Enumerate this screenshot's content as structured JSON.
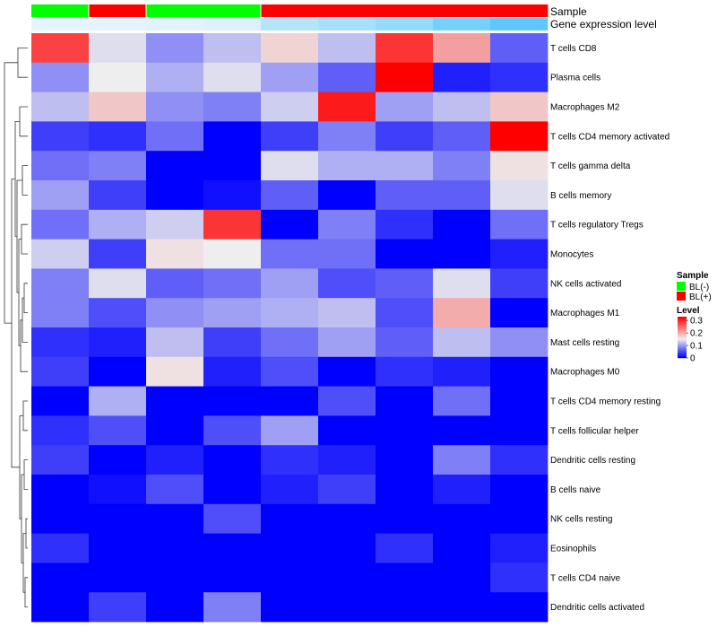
{
  "chart_data": {
    "type": "heatmap",
    "title": "",
    "annotation_rows": [
      {
        "name": "Sample",
        "values": [
          "BL(-)",
          "BL(+)",
          "BL(-)",
          "BL(-)",
          "BL(+)",
          "BL(+)",
          "BL(+)",
          "BL(+)",
          "BL(+)"
        ]
      },
      {
        "name": "Gene expression level",
        "values": [
          0.05,
          0.06,
          0.08,
          0.12,
          0.35,
          0.45,
          0.55,
          0.75,
          0.9
        ]
      }
    ],
    "rows": [
      "T cells CD8",
      "Plasma cells",
      "Macrophages M2",
      "T cells CD4 memory activated",
      "T cells gamma delta",
      "B cells memory",
      "T cells regulatory  Tregs",
      "Monocytes",
      "NK cells activated",
      "Macrophages M1",
      "Mast cells resting",
      "Macrophages M0",
      "T cells CD4 memory resting",
      "T cells follicular helper",
      "Dendritic cells resting",
      "B cells naive",
      "NK cells resting",
      "Eosinophils",
      "T cells CD4 naive",
      "Dendritic cells activated"
    ],
    "columns": 9,
    "values": [
      [
        0.28,
        0.14,
        0.09,
        0.12,
        0.17,
        0.12,
        0.29,
        0.21,
        0.06
      ],
      [
        0.09,
        0.15,
        0.11,
        0.14,
        0.1,
        0.06,
        0.33,
        0.02,
        0.03
      ],
      [
        0.12,
        0.18,
        0.09,
        0.08,
        0.13,
        0.31,
        0.1,
        0.12,
        0.18
      ],
      [
        0.04,
        0.03,
        0.07,
        0.0,
        0.04,
        0.08,
        0.04,
        0.06,
        0.33
      ],
      [
        0.07,
        0.08,
        0.0,
        0.0,
        0.14,
        0.11,
        0.11,
        0.08,
        0.16
      ],
      [
        0.1,
        0.04,
        0.0,
        0.01,
        0.06,
        0.0,
        0.06,
        0.06,
        0.14
      ],
      [
        0.07,
        0.11,
        0.13,
        0.29,
        0.0,
        0.08,
        0.03,
        0.0,
        0.07
      ],
      [
        0.13,
        0.04,
        0.16,
        0.15,
        0.07,
        0.07,
        0.0,
        0.0,
        0.02
      ],
      [
        0.08,
        0.14,
        0.06,
        0.07,
        0.1,
        0.05,
        0.06,
        0.14,
        0.04
      ],
      [
        0.08,
        0.05,
        0.09,
        0.1,
        0.11,
        0.12,
        0.05,
        0.2,
        0.0
      ],
      [
        0.03,
        0.02,
        0.12,
        0.04,
        0.07,
        0.1,
        0.06,
        0.12,
        0.09
      ],
      [
        0.04,
        0.0,
        0.16,
        0.02,
        0.05,
        0.0,
        0.03,
        0.02,
        0.0
      ],
      [
        0.0,
        0.11,
        0.0,
        0.0,
        0.0,
        0.05,
        0.0,
        0.07,
        0.0
      ],
      [
        0.03,
        0.05,
        0.0,
        0.05,
        0.1,
        0.0,
        0.0,
        0.0,
        0.0
      ],
      [
        0.04,
        0.0,
        0.02,
        0.0,
        0.03,
        0.02,
        0.0,
        0.08,
        0.03
      ],
      [
        0.0,
        0.01,
        0.05,
        0.0,
        0.02,
        0.04,
        0.0,
        0.02,
        0.0
      ],
      [
        0.0,
        0.0,
        0.0,
        0.05,
        0.0,
        0.0,
        0.0,
        0.0,
        0.0
      ],
      [
        0.03,
        0.0,
        0.0,
        0.0,
        0.0,
        0.0,
        0.03,
        0.0,
        0.02
      ],
      [
        0.0,
        0.0,
        0.0,
        0.0,
        0.0,
        0.0,
        0.0,
        0.0,
        0.03
      ],
      [
        0.0,
        0.04,
        0.0,
        0.08,
        0.0,
        0.0,
        0.0,
        0.0,
        0.0
      ]
    ],
    "color_scale": {
      "min": 0,
      "mid": 0.15,
      "max": 0.33,
      "low": "#0000ff",
      "mid_color": "#eeeeee",
      "high": "#ff0000"
    },
    "expression_scale": {
      "low": "#eef8fd",
      "high": "#4fc3f7"
    },
    "legend": {
      "sample_title": "Sample",
      "sample_items": [
        {
          "label": "BL(-)",
          "color": "#00ff00"
        },
        {
          "label": "BL(+)",
          "color": "#ff0000"
        }
      ],
      "level_title": "Level",
      "level_ticks": [
        {
          "label": "0.3",
          "value": 0.3
        },
        {
          "label": "0.2",
          "value": 0.2
        },
        {
          "label": "0.1",
          "value": 0.1
        },
        {
          "label": "0",
          "value": 0.0
        }
      ]
    }
  }
}
